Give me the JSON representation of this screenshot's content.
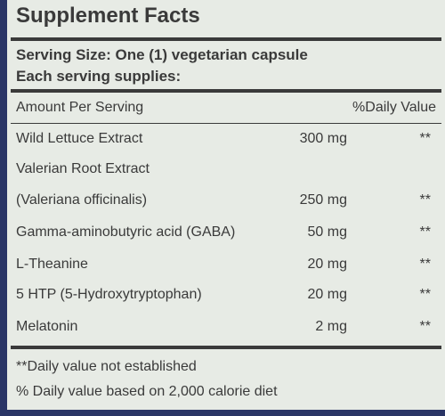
{
  "header": {
    "title": "Supplement Facts",
    "serving_size": "Serving Size: One (1) vegetarian capsule",
    "serving_supplies": "Each serving supplies:"
  },
  "table": {
    "amount_header": "Amount Per Serving",
    "dv_header": "%Daily Value",
    "rows": [
      {
        "name": "Wild Lettuce Extract",
        "amount": "300 mg",
        "dv": "**"
      },
      {
        "name": "Valerian Root Extract"
      },
      {
        "name": "(Valeriana officinalis)",
        "amount": "250 mg",
        "dv": "**"
      },
      {
        "name": "Gamma-aminobutyric acid (GABA)",
        "amount": "50 mg",
        "dv": "**"
      },
      {
        "name": "L-Theanine",
        "amount": "20 mg",
        "dv": "**"
      },
      {
        "name": "5 HTP (5-Hydroxytryptophan)",
        "amount": "20 mg",
        "dv": "**"
      },
      {
        "name": "Melatonin",
        "amount": "2 mg",
        "dv": "**"
      }
    ]
  },
  "footnotes": [
    "**Daily value not established",
    "% Daily value based on 2,000 calorie diet"
  ]
}
